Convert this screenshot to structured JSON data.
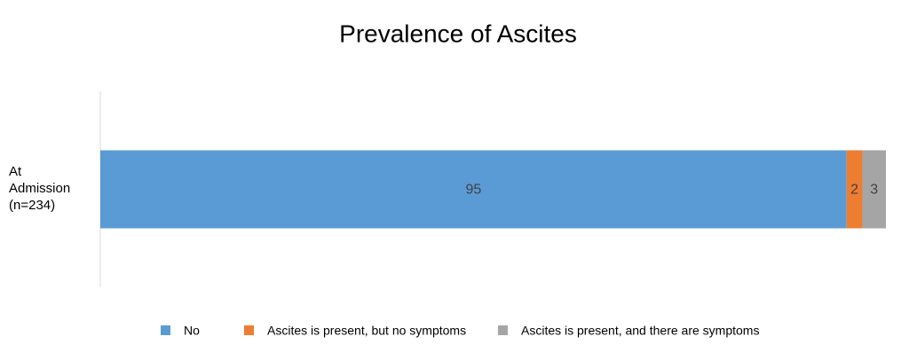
{
  "chart_data": {
    "type": "stacked-bar-horizontal",
    "title": "Prevalence of Ascites",
    "categories": [
      "At Admission (n=234)"
    ],
    "series": [
      {
        "name": "No",
        "color": "#5b9bd5",
        "values": [
          95
        ]
      },
      {
        "name": "Ascites is present, but no symptoms",
        "color": "#ed7d31",
        "values": [
          2
        ]
      },
      {
        "name": "Ascites is present, and there are symptoms",
        "color": "#a5a5a5",
        "values": [
          3
        ]
      }
    ],
    "xlim": [
      0,
      100
    ],
    "legend": "bottom"
  }
}
